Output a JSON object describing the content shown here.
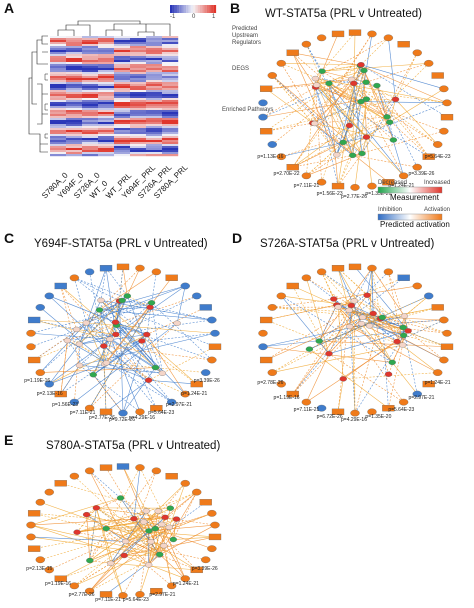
{
  "panels": {
    "A": {
      "letter": "A",
      "heatmap": {
        "columns": [
          "S780A_0",
          "Y694F_0",
          "S726A_0",
          "WT_0",
          "WT_PRL",
          "Y694F_PRL",
          "S726A_PRL",
          "S780A_PRL"
        ],
        "colorbar_ticks": [
          "-1",
          "0",
          "1"
        ],
        "colors": {
          "low": "#2a36b8",
          "mid": "#f4f4f8",
          "high": "#e0362c"
        }
      }
    },
    "B": {
      "letter": "B",
      "title": "WT-STAT5a (PRL v Untreated)",
      "legend_upstream": "Predicted Upstream Regulators",
      "legend_degs": "DEGS",
      "legend_pathways": "Enriched Pathways",
      "measurement": {
        "decreased": "Decreased",
        "increased": "Increased",
        "label": "Measurement"
      },
      "prediction": {
        "inhibition": "Inhibition",
        "activation": "Activation",
        "label": "Predicted activation"
      },
      "pvalues": [
        "p=1.13E-16",
        "p=2.70E-22",
        "p=7.11E-21",
        "p=1.56E-23",
        "p=2.77E-26",
        "p=1.35E-20",
        "p=1.24E-21",
        "p=3.39E-26",
        "p=5.64E-23"
      ]
    },
    "C": {
      "letter": "C",
      "title": "Y694F-STAT5a (PRL v Untreated)",
      "pvalues": [
        "p=1.19E-16",
        "p=2.13E-16",
        "p=1.56E-23",
        "p=7.11E-21",
        "p=2.77E-26",
        "p=9.72E-26",
        "p=4.29E-16",
        "p=5.64E-23",
        "p=2.97E-21",
        "p=1.24E-21",
        "p=3.39E-26"
      ]
    },
    "D": {
      "letter": "D",
      "title": "S726A-STAT5a (PRL v Untreated)",
      "pvalues": [
        "p=2.78E-26",
        "p=1.19E-16",
        "p=7.11E-21",
        "p=6.72E-26",
        "p=4.29E-16",
        "p=1.35E-20",
        "p=5.64E-23",
        "p=2.97E-21",
        "p=1.24E-21"
      ]
    },
    "E": {
      "letter": "E",
      "title": "S780A-STAT5a (PRL v Untreated)",
      "pvalues": [
        "p=2.13E-16",
        "p=1.19E-16",
        "p=2.77E-26",
        "p=7.11E-21",
        "p=5.64E-23",
        "p=2.97E-21",
        "p=1.24E-21",
        "p=3.39E-26"
      ]
    }
  }
}
